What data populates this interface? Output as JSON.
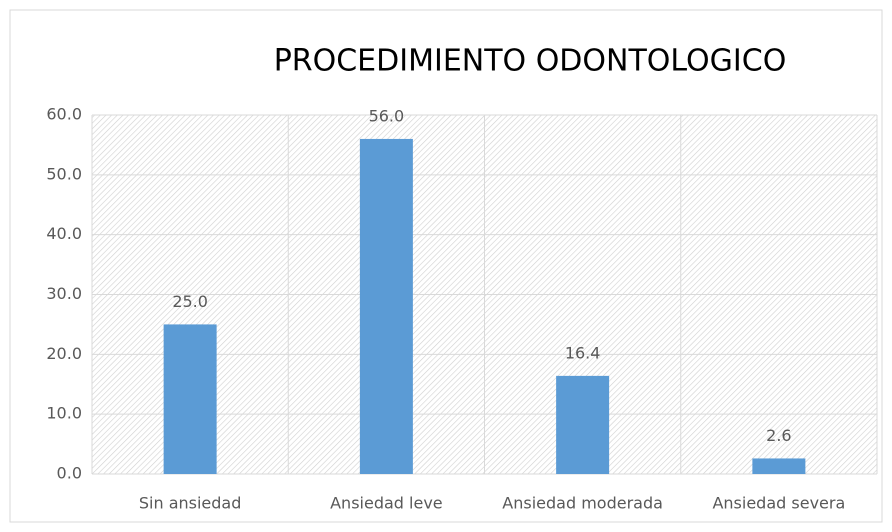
{
  "chart_data": {
    "type": "bar",
    "title": "PROCEDIMIENTO ODONTOLOGICO",
    "categories": [
      "Sin ansiedad",
      "Ansiedad leve",
      "Ansiedad moderada",
      "Ansiedad severa"
    ],
    "values": [
      25.0,
      56.0,
      16.4,
      2.6
    ],
    "value_labels": [
      "25.0",
      "56.0",
      "16.4",
      "2.6"
    ],
    "color": "#5b9bd5",
    "ylim": [
      0,
      60
    ],
    "yticks": [
      {
        "value": 0,
        "label": "0.0"
      },
      {
        "value": 10,
        "label": "10.0"
      },
      {
        "value": 20,
        "label": "20.0"
      },
      {
        "value": 30,
        "label": "30.0"
      },
      {
        "value": 40,
        "label": "40.0"
      },
      {
        "value": 50,
        "label": "50.0"
      },
      {
        "value": 60,
        "label": "60.0"
      }
    ],
    "grid": true
  }
}
